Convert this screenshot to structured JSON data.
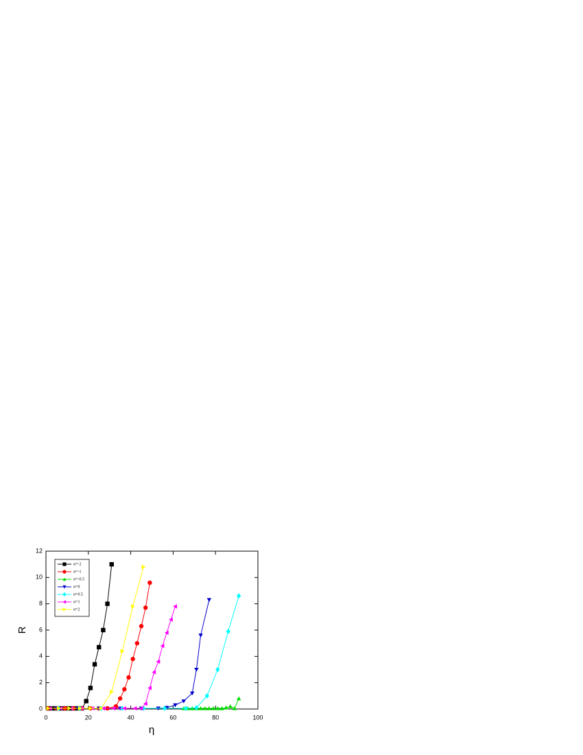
{
  "chart_data": {
    "type": "line",
    "x_label": "η",
    "y_label": "R",
    "xlim": [
      0,
      100
    ],
    "xticks": [
      0,
      20,
      40,
      60,
      80,
      100
    ],
    "ylim": [
      0,
      12
    ],
    "yticks": [
      0,
      2,
      4,
      6,
      8,
      10,
      12
    ],
    "legend": "upper left",
    "series": [
      {
        "name": "α=-2",
        "color": "#000000",
        "marker": "square",
        "x": [
          1,
          3,
          5,
          7,
          9,
          11,
          13,
          15,
          17,
          19,
          21,
          23,
          25,
          27,
          29,
          31
        ],
        "values": [
          0.05,
          0.05,
          0.05,
          0.05,
          0.05,
          0.05,
          0.05,
          0.05,
          0.05,
          0.6,
          1.6,
          3.4,
          4.7,
          6.0,
          8.0,
          11.0
        ]
      },
      {
        "name": "α=-1",
        "color": "#ff0000",
        "marker": "circle",
        "x": [
          1,
          5,
          9,
          13,
          17,
          21,
          25,
          29,
          33,
          35,
          37,
          39,
          41,
          43,
          45,
          47,
          49
        ],
        "values": [
          0.05,
          0.05,
          0.05,
          0.05,
          0.05,
          0.05,
          0.05,
          0.05,
          0.2,
          0.8,
          1.5,
          2.4,
          3.8,
          5.0,
          6.3,
          7.7,
          9.6
        ]
      },
      {
        "name": "α=-0.5",
        "color": "#00dd00",
        "marker": "triangle-up",
        "x": [
          65,
          67,
          69,
          71,
          73,
          75,
          77,
          79,
          81,
          83,
          85,
          87,
          89,
          91
        ],
        "values": [
          0.05,
          0.05,
          0.05,
          0.05,
          0.05,
          0.05,
          0.05,
          0.05,
          0.05,
          0.05,
          0.1,
          0.2,
          0.05,
          0.8
        ]
      },
      {
        "name": "α=0",
        "color": "#0000cc",
        "marker": "triangle-down",
        "x": [
          5,
          15,
          25,
          35,
          45,
          53,
          57,
          61,
          65,
          69,
          71,
          73,
          77
        ],
        "values": [
          0.05,
          0.05,
          0.05,
          0.05,
          0.05,
          0.05,
          0.1,
          0.3,
          0.6,
          1.2,
          3.0,
          5.6,
          8.3
        ]
      },
      {
        "name": "α=0.5",
        "color": "#00ffff",
        "marker": "diamond",
        "x": [
          6,
          16,
          26,
          36,
          46,
          56,
          66,
          71,
          76,
          81,
          86,
          91
        ],
        "values": [
          0.05,
          0.05,
          0.05,
          0.05,
          0.05,
          0.05,
          0.05,
          0.1,
          1.0,
          3.0,
          5.9,
          8.6
        ]
      },
      {
        "name": "α=1",
        "color": "#ff00ff",
        "marker": "triangle-left",
        "x": [
          2,
          7,
          12,
          17,
          22,
          27,
          32,
          37,
          42,
          45,
          47,
          49,
          51,
          53,
          55,
          57,
          59,
          61
        ],
        "values": [
          0.05,
          0.05,
          0.05,
          0.05,
          0.05,
          0.05,
          0.05,
          0.05,
          0.05,
          0.05,
          0.4,
          1.6,
          2.8,
          3.6,
          4.8,
          5.8,
          6.8,
          7.8
        ]
      },
      {
        "name": "α=2",
        "color": "#ffff00",
        "marker": "triangle-right",
        "x": [
          1,
          6,
          11,
          16,
          21,
          26,
          31,
          36,
          41,
          46
        ],
        "values": [
          0.05,
          0.05,
          0.05,
          0.05,
          0.05,
          0.05,
          1.3,
          4.4,
          7.8,
          10.8
        ]
      }
    ]
  }
}
